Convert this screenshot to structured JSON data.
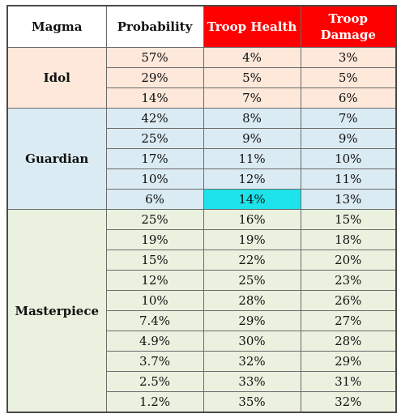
{
  "headers": {
    "magma": "Magma",
    "probability": "Probability",
    "troop_health": "Troop Health",
    "troop_damage_line1": "Troop",
    "troop_damage_line2": "Damage"
  },
  "colors": {
    "header_accent": "#ff0000",
    "idol_bg": "#fde8da",
    "guardian_bg": "#dbebf3",
    "masterpiece_bg": "#ebf1df",
    "highlight": "#1ee3ea"
  },
  "groups": [
    {
      "name": "Idol",
      "rows": [
        {
          "probability": "57%",
          "health": "4%",
          "damage": "3%"
        },
        {
          "probability": "29%",
          "health": "5%",
          "damage": "5%"
        },
        {
          "probability": "14%",
          "health": "7%",
          "damage": "6%"
        }
      ]
    },
    {
      "name": "Guardian",
      "rows": [
        {
          "probability": "42%",
          "health": "8%",
          "damage": "7%"
        },
        {
          "probability": "25%",
          "health": "9%",
          "damage": "9%"
        },
        {
          "probability": "17%",
          "health": "11%",
          "damage": "10%"
        },
        {
          "probability": "10%",
          "health": "12%",
          "damage": "11%"
        },
        {
          "probability": "6%",
          "health": "14%",
          "damage": "13%"
        }
      ]
    },
    {
      "name": "Masterpiece",
      "rows": [
        {
          "probability": "25%",
          "health": "16%",
          "damage": "15%"
        },
        {
          "probability": "19%",
          "health": "19%",
          "damage": "18%"
        },
        {
          "probability": "15%",
          "health": "22%",
          "damage": "20%"
        },
        {
          "probability": "12%",
          "health": "25%",
          "damage": "23%"
        },
        {
          "probability": "10%",
          "health": "28%",
          "damage": "26%"
        },
        {
          "probability": "7.4%",
          "health": "29%",
          "damage": "27%"
        },
        {
          "probability": "4.9%",
          "health": "30%",
          "damage": "28%"
        },
        {
          "probability": "3.7%",
          "health": "32%",
          "damage": "29%"
        },
        {
          "probability": "2.5%",
          "health": "33%",
          "damage": "31%"
        },
        {
          "probability": "1.2%",
          "health": "35%",
          "damage": "32%"
        }
      ]
    }
  ],
  "highlighted_cell": {
    "group": 1,
    "row": 4,
    "column": "health"
  }
}
